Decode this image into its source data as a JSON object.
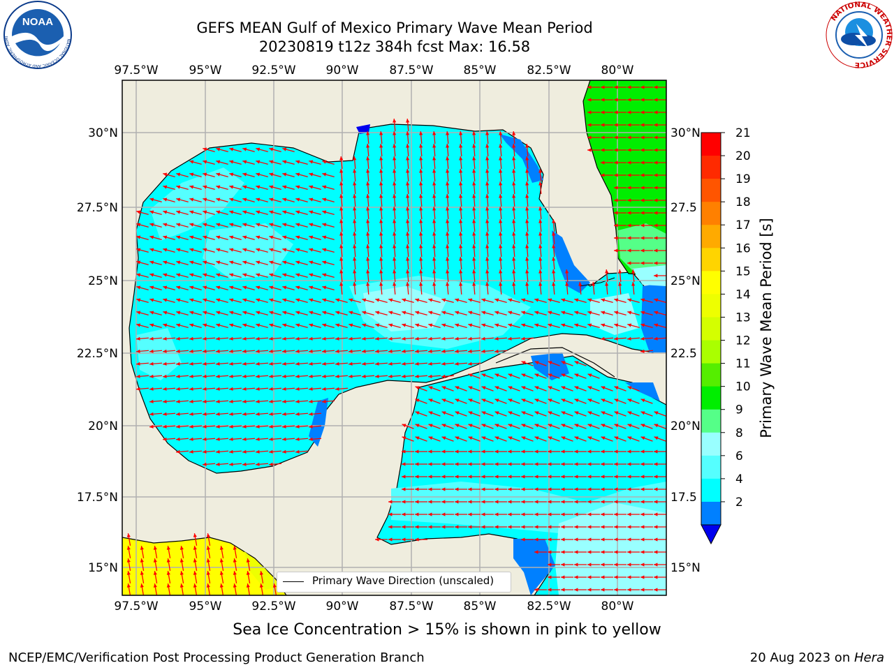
{
  "header": {
    "title_line1": "GEFS MEAN Gulf of Mexico Primary Wave Mean Period",
    "title_line2": "20230819 t12z 384h fcst   Max: 16.58"
  },
  "logos": {
    "noaa_text": "NOAA",
    "noaa_ring_text": "NATIONAL OCEANIC AND ATMOSPHERIC ADMINISTRATION · U.S. DEPARTMENT OF COMMERCE",
    "nws_ring_text": "NATIONAL WEATHER SERVICE"
  },
  "map": {
    "lon_ticks": [
      "97.5°W",
      "95°W",
      "92.5°W",
      "90°W",
      "87.5°W",
      "85°W",
      "82.5°W",
      "80°W"
    ],
    "lat_ticks_left": [
      "30°N",
      "27.5°N",
      "25°N",
      "22.5°N",
      "20°N",
      "17.5°N",
      "15°N"
    ],
    "lat_ticks_right": [
      "30°N",
      "27.5",
      "25°N",
      "22.5",
      "20°N",
      "17.5",
      "15°N"
    ],
    "legend_label": "Primary Wave Direction (unscaled)",
    "colors": {
      "land": "#efedde",
      "ocean_4_6": "#00ffff",
      "ocean_6_8": "#55ffff",
      "ocean_8_9": "#99ffff",
      "shelf_2_4": "#0080ff",
      "atlantic_10_11": "#00ee00",
      "pacific_15_16": "#ffff00",
      "arrow": "#ff0000"
    }
  },
  "colorbar": {
    "label": "Primary Wave Mean Period [s]",
    "ticks": [
      "21",
      "20",
      "19",
      "18",
      "17",
      "16",
      "15",
      "14",
      "13",
      "12",
      "11",
      "10",
      "9",
      "8",
      "6",
      "4",
      "2"
    ],
    "colors_top_to_bottom": [
      "#ff0000",
      "#ff2a00",
      "#ff5500",
      "#ff8000",
      "#ffaa00",
      "#ffd400",
      "#ffff00",
      "#eeff00",
      "#d4ff00",
      "#aaff00",
      "#55ee00",
      "#00ee00",
      "#55ff88",
      "#99ffff",
      "#55ffff",
      "#00ffff",
      "#0080ff"
    ],
    "under_color": "#0000ee"
  },
  "caption": "Sea Ice Concentration > 15% is shown in pink to yellow",
  "footer": {
    "left": "NCEP/EMC/Verification Post Processing Product Generation Branch",
    "right_prefix": "20 Aug 2023 on ",
    "right_host": "Hera"
  }
}
